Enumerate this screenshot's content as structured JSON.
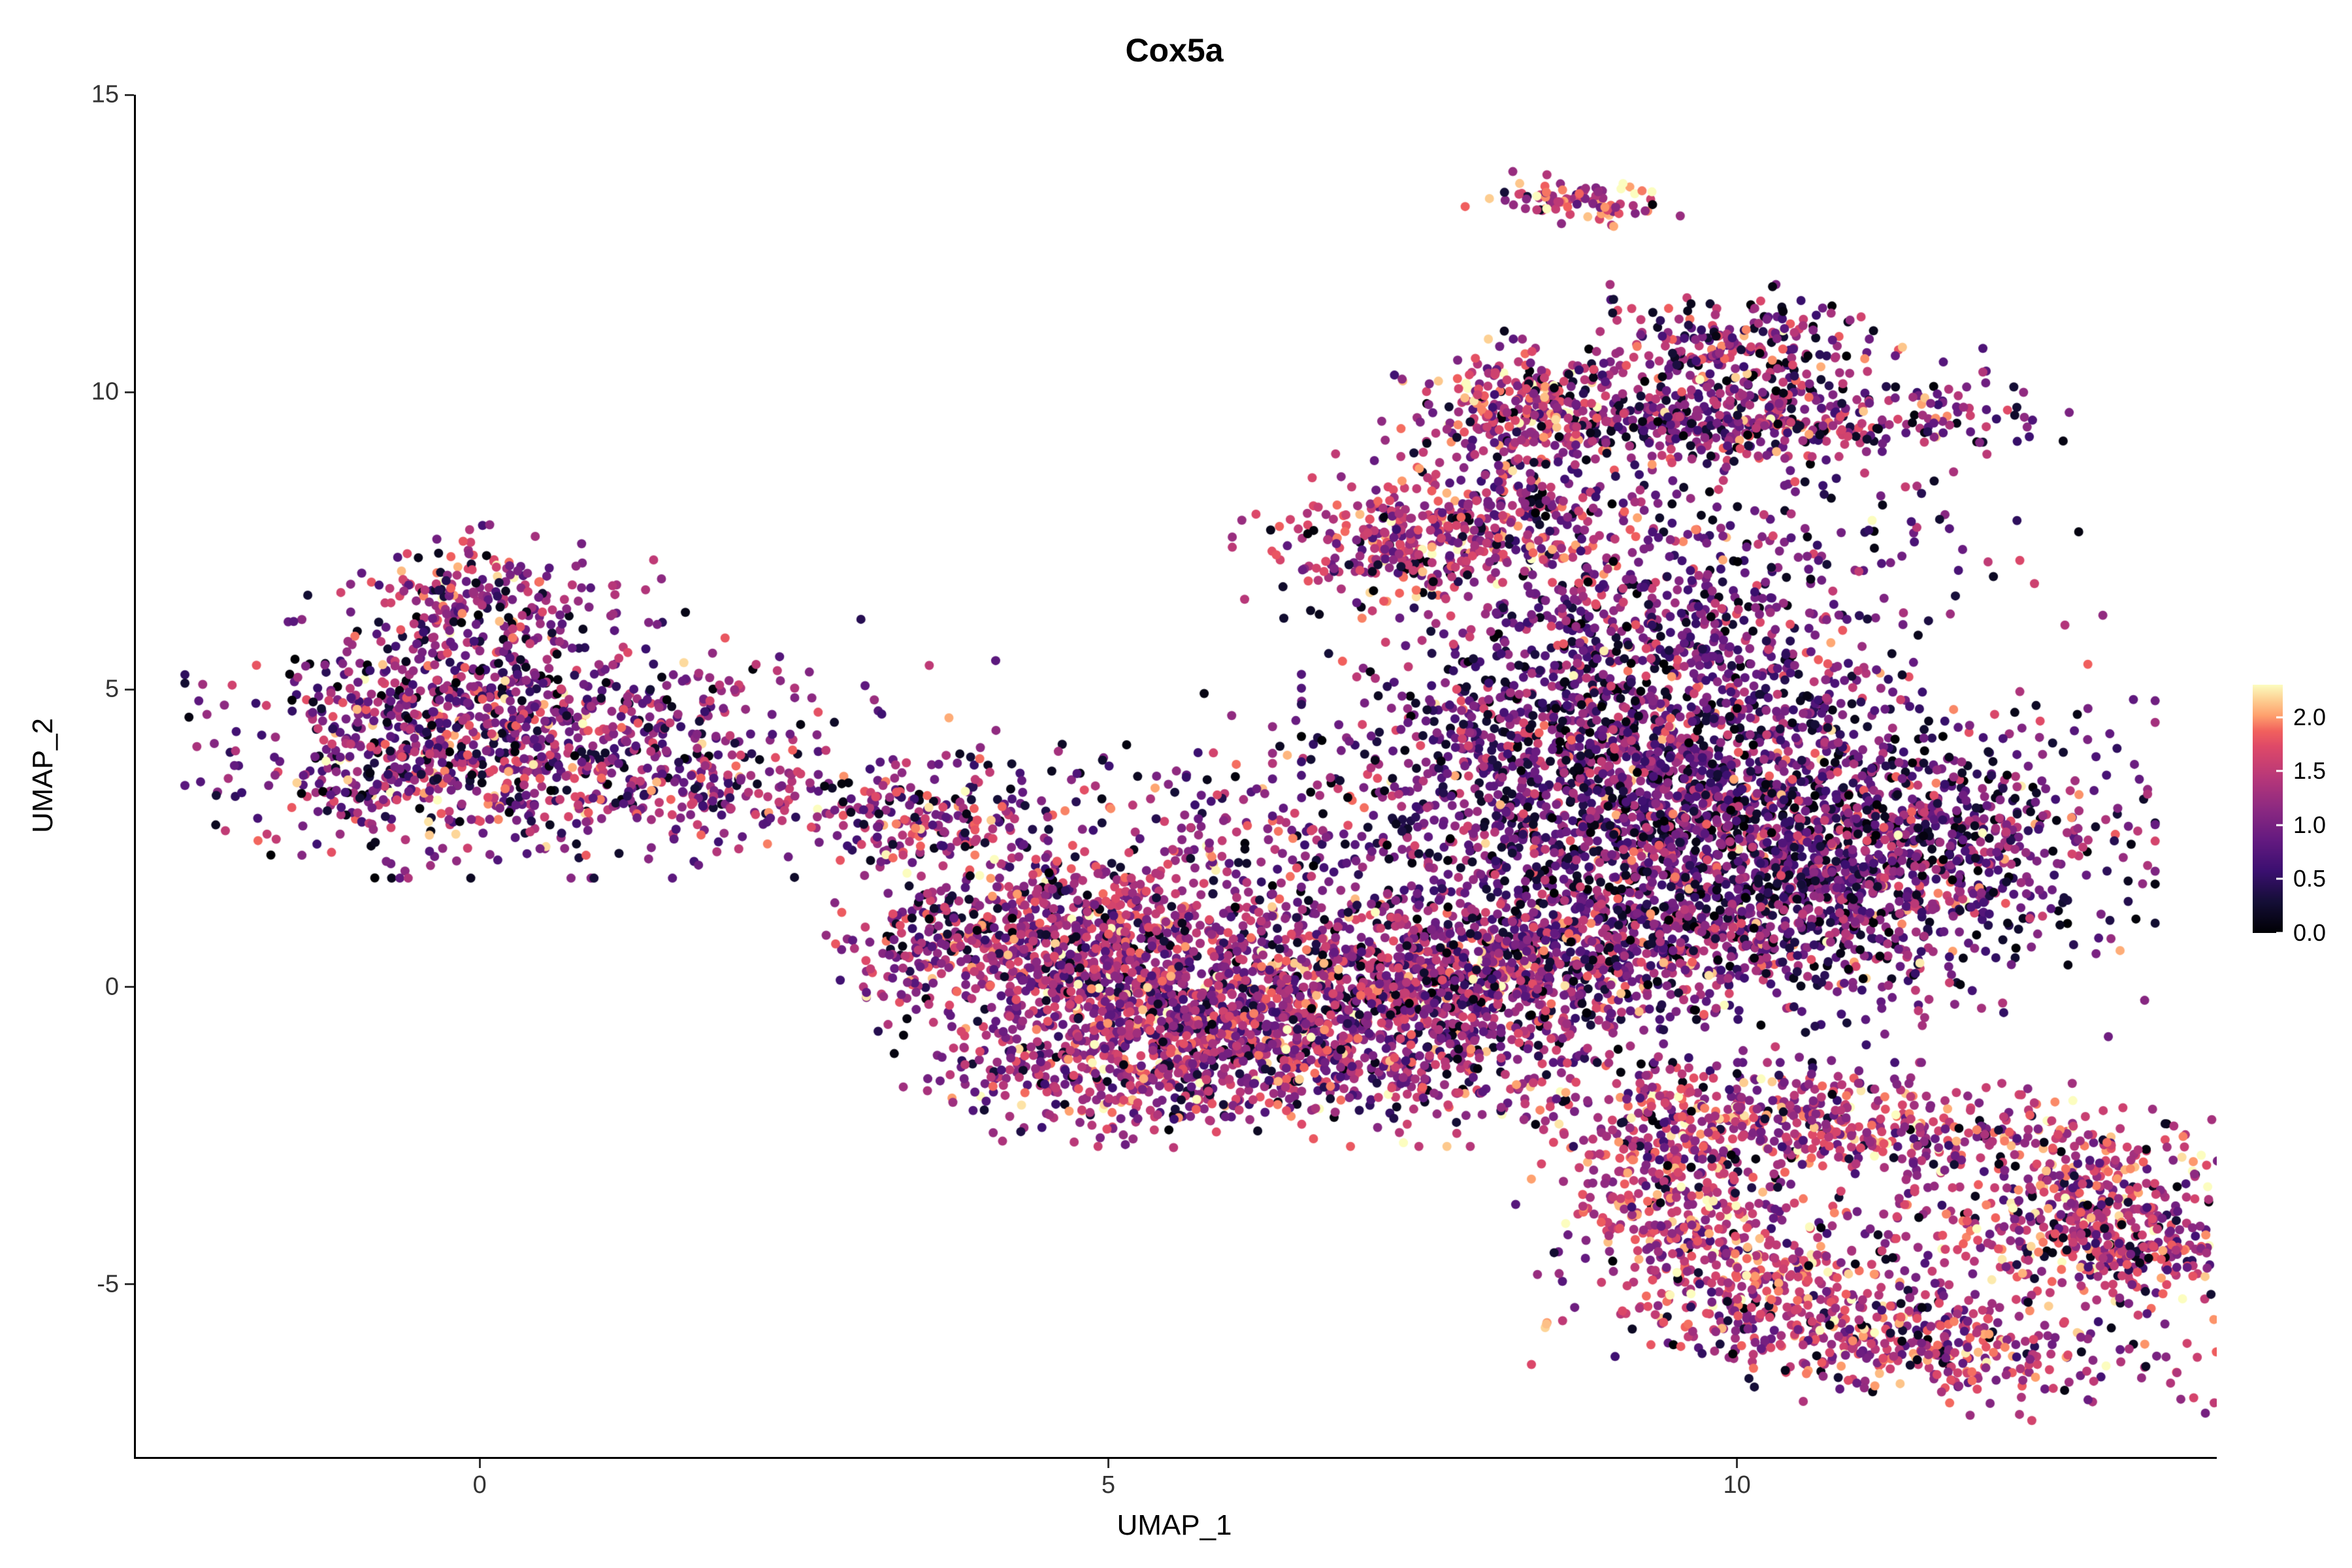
{
  "title": "Cox5a",
  "chart_data": {
    "type": "scatter",
    "title": "Cox5a",
    "xlabel": "UMAP_1",
    "ylabel": "UMAP_2",
    "xlim": [
      -2.75,
      13.8
    ],
    "ylim": [
      -7.9,
      15
    ],
    "x_ticks": [
      0,
      5,
      10
    ],
    "y_ticks": [
      -5,
      0,
      5,
      10,
      15
    ],
    "grid": false,
    "point_radius": 7,
    "seed": 42,
    "legend": {
      "position": "right",
      "ticks": [
        0.0,
        0.5,
        1.0,
        1.5,
        2.0
      ],
      "tick_labels": [
        "0.0",
        "0.5",
        "1.0",
        "1.5",
        "2.0"
      ],
      "range": [
        0,
        2.3
      ]
    },
    "palette": {
      "name": "magma",
      "stops": [
        [
          0.0,
          "#000004"
        ],
        [
          0.125,
          "#140E36"
        ],
        [
          0.25,
          "#3B0F70"
        ],
        [
          0.375,
          "#641A80"
        ],
        [
          0.5,
          "#8C2981"
        ],
        [
          0.625,
          "#B73779"
        ],
        [
          0.75,
          "#DE4968"
        ],
        [
          0.8125,
          "#F1605D"
        ],
        [
          0.875,
          "#FE9F6D"
        ],
        [
          0.9375,
          "#FDCE91"
        ],
        [
          1.0,
          "#FCFDBF"
        ]
      ]
    },
    "clusters": [
      {
        "name": "left-main",
        "cx": -0.15,
        "cy": 4.3,
        "sx": 0.85,
        "sy": 0.95,
        "rot": 0,
        "n": 1000,
        "expr_mean": 1.15,
        "expr_sd": 0.5,
        "dark_frac": 0.13
      },
      {
        "name": "left-top",
        "cx": 0.0,
        "cy": 6.6,
        "sx": 0.55,
        "sy": 0.45,
        "rot": 0,
        "n": 180,
        "expr_mean": 1.2,
        "expr_sd": 0.5,
        "dark_frac": 0.12
      },
      {
        "name": "left-tail",
        "cx": 1.7,
        "cy": 3.4,
        "sx": 0.85,
        "sy": 0.5,
        "rot": -15,
        "n": 260,
        "expr_mean": 1.15,
        "expr_sd": 0.5,
        "dark_frac": 0.13
      },
      {
        "name": "left-bridge",
        "cx": 3.5,
        "cy": 2.9,
        "sx": 0.45,
        "sy": 0.4,
        "rot": -20,
        "n": 160,
        "expr_mean": 1.2,
        "expr_sd": 0.5,
        "dark_frac": 0.1
      },
      {
        "name": "left-sparse-up",
        "cx": 2.0,
        "cy": 5.0,
        "sx": 0.6,
        "sy": 0.7,
        "rot": 0,
        "n": 50,
        "expr_mean": 1.1,
        "expr_sd": 0.5,
        "dark_frac": 0.15
      },
      {
        "name": "mid-small",
        "cx": 3.65,
        "cy": 0.8,
        "sx": 0.35,
        "sy": 0.55,
        "rot": 0,
        "n": 170,
        "expr_mean": 1.25,
        "expr_sd": 0.45,
        "dark_frac": 0.1
      },
      {
        "name": "mid-sparse",
        "cx": 4.4,
        "cy": 2.0,
        "sx": 0.5,
        "sy": 0.8,
        "rot": 0,
        "n": 110,
        "expr_mean": 1.2,
        "expr_sd": 0.5,
        "dark_frac": 0.12
      },
      {
        "name": "central-a",
        "cx": 5.4,
        "cy": 0.1,
        "sx": 0.9,
        "sy": 0.85,
        "rot": 0,
        "n": 900,
        "expr_mean": 1.3,
        "expr_sd": 0.45,
        "dark_frac": 0.09
      },
      {
        "name": "central-b",
        "cx": 6.8,
        "cy": -0.6,
        "sx": 1.0,
        "sy": 0.8,
        "rot": 0,
        "n": 1000,
        "expr_mean": 1.25,
        "expr_sd": 0.45,
        "dark_frac": 0.1
      },
      {
        "name": "central-c",
        "cx": 5.1,
        "cy": -1.4,
        "sx": 0.7,
        "sy": 0.5,
        "rot": 0,
        "n": 350,
        "expr_mean": 1.3,
        "expr_sd": 0.45,
        "dark_frac": 0.08
      },
      {
        "name": "central-d",
        "cx": 4.7,
        "cy": 0.9,
        "sx": 0.5,
        "sy": 0.6,
        "rot": 0,
        "n": 250,
        "expr_mean": 1.25,
        "expr_sd": 0.45,
        "dark_frac": 0.1
      },
      {
        "name": "central-top-sp",
        "cx": 6.0,
        "cy": 2.4,
        "sx": 0.8,
        "sy": 0.8,
        "rot": 0,
        "n": 160,
        "expr_mean": 1.2,
        "expr_sd": 0.5,
        "dark_frac": 0.12
      },
      {
        "name": "bridge-right",
        "cx": 7.9,
        "cy": 0.2,
        "sx": 0.7,
        "sy": 0.8,
        "rot": 0,
        "n": 450,
        "expr_mean": 1.2,
        "expr_sd": 0.5,
        "dark_frac": 0.12
      },
      {
        "name": "right-core",
        "cx": 9.8,
        "cy": 2.5,
        "sx": 1.35,
        "sy": 1.45,
        "rot": 0,
        "n": 2300,
        "expr_mean": 0.95,
        "expr_sd": 0.5,
        "dark_frac": 0.17
      },
      {
        "name": "right-west",
        "cx": 8.6,
        "cy": 3.9,
        "sx": 0.8,
        "sy": 0.8,
        "rot": 0,
        "n": 500,
        "expr_mean": 1.0,
        "expr_sd": 0.5,
        "dark_frac": 0.15
      },
      {
        "name": "right-east",
        "cx": 11.3,
        "cy": 2.2,
        "sx": 0.75,
        "sy": 0.95,
        "rot": 0,
        "n": 500,
        "expr_mean": 1.0,
        "expr_sd": 0.5,
        "dark_frac": 0.15
      },
      {
        "name": "right-south",
        "cx": 9.1,
        "cy": 0.7,
        "sx": 0.9,
        "sy": 0.55,
        "rot": 0,
        "n": 400,
        "expr_mean": 1.15,
        "expr_sd": 0.5,
        "dark_frac": 0.12
      },
      {
        "name": "right-north",
        "cx": 9.3,
        "cy": 5.7,
        "sx": 0.9,
        "sy": 0.75,
        "rot": 0,
        "n": 450,
        "expr_mean": 1.0,
        "expr_sd": 0.5,
        "dark_frac": 0.16
      },
      {
        "name": "iso-mid",
        "cx": 7.4,
        "cy": 7.5,
        "sx": 0.55,
        "sy": 0.5,
        "rot": 0,
        "n": 320,
        "expr_mean": 1.45,
        "expr_sd": 0.4,
        "dark_frac": 0.08
      },
      {
        "name": "column-sparse",
        "cx": 8.4,
        "cy": 7.8,
        "sx": 0.5,
        "sy": 0.85,
        "rot": 0,
        "n": 230,
        "expr_mean": 1.2,
        "expr_sd": 0.5,
        "dark_frac": 0.12
      },
      {
        "name": "upper-sparse",
        "cx": 9.9,
        "cy": 7.6,
        "sx": 1.2,
        "sy": 0.85,
        "rot": 0,
        "n": 220,
        "expr_mean": 1.05,
        "expr_sd": 0.5,
        "dark_frac": 0.15
      },
      {
        "name": "band-left-blob",
        "cx": 8.3,
        "cy": 9.8,
        "sx": 0.38,
        "sy": 0.42,
        "rot": 0,
        "n": 220,
        "expr_mean": 1.5,
        "expr_sd": 0.45,
        "dark_frac": 0.1
      },
      {
        "name": "band",
        "cx": 9.9,
        "cy": 9.5,
        "sx": 1.05,
        "sy": 0.28,
        "rot": 5,
        "n": 480,
        "expr_mean": 1.15,
        "expr_sd": 0.5,
        "dark_frac": 0.14
      },
      {
        "name": "band-top-blob",
        "cx": 10.0,
        "cy": 10.9,
        "sx": 0.5,
        "sy": 0.35,
        "rot": 0,
        "n": 190,
        "expr_mean": 1.2,
        "expr_sd": 0.5,
        "dark_frac": 0.12
      },
      {
        "name": "band-sparse",
        "cx": 9.6,
        "cy": 10.2,
        "sx": 0.9,
        "sy": 0.4,
        "rot": 0,
        "n": 120,
        "expr_mean": 1.1,
        "expr_sd": 0.5,
        "dark_frac": 0.15
      },
      {
        "name": "top-small",
        "cx": 8.7,
        "cy": 13.2,
        "sx": 0.33,
        "sy": 0.17,
        "rot": -8,
        "n": 95,
        "expr_mean": 1.6,
        "expr_sd": 0.45,
        "dark_frac": 0.1
      },
      {
        "name": "br-arm-top",
        "cx": 10.6,
        "cy": -2.3,
        "sx": 1.2,
        "sy": 0.42,
        "rot": -8,
        "n": 550,
        "expr_mean": 1.45,
        "expr_sd": 0.45,
        "dark_frac": 0.08
      },
      {
        "name": "br-right-edge",
        "cx": 12.7,
        "cy": -3.7,
        "sx": 0.55,
        "sy": 0.75,
        "rot": -35,
        "n": 380,
        "expr_mean": 1.45,
        "expr_sd": 0.45,
        "dark_frac": 0.08
      },
      {
        "name": "br-tip",
        "cx": 13.2,
        "cy": -4.5,
        "sx": 0.4,
        "sy": 0.45,
        "rot": 0,
        "n": 170,
        "expr_mean": 1.35,
        "expr_sd": 0.5,
        "dark_frac": 0.1
      },
      {
        "name": "br-left-drop",
        "cx": 9.5,
        "cy": -3.6,
        "sx": 0.5,
        "sy": 0.85,
        "rot": 10,
        "n": 380,
        "expr_mean": 1.5,
        "expr_sd": 0.45,
        "dark_frac": 0.08
      },
      {
        "name": "br-bottom-arc",
        "cx": 11.2,
        "cy": -5.9,
        "sx": 1.05,
        "sy": 0.45,
        "rot": -10,
        "n": 480,
        "expr_mean": 1.4,
        "expr_sd": 0.45,
        "dark_frac": 0.09
      },
      {
        "name": "br-inner-sparse",
        "cx": 11.2,
        "cy": -4.3,
        "sx": 0.8,
        "sy": 0.7,
        "rot": 0,
        "n": 90,
        "expr_mean": 1.3,
        "expr_sd": 0.5,
        "dark_frac": 0.1
      },
      {
        "name": "br-join",
        "cx": 10.3,
        "cy": -5.0,
        "sx": 0.5,
        "sy": 0.5,
        "rot": 0,
        "n": 150,
        "expr_mean": 1.5,
        "expr_sd": 0.4,
        "dark_frac": 0.08
      },
      {
        "name": "stray-outliers",
        "cx": 6.5,
        "cy": 4.2,
        "sx": 1.3,
        "sy": 0.9,
        "rot": 0,
        "n": 25,
        "expr_mean": 1.1,
        "expr_sd": 0.5,
        "dark_frac": 0.12
      }
    ]
  }
}
